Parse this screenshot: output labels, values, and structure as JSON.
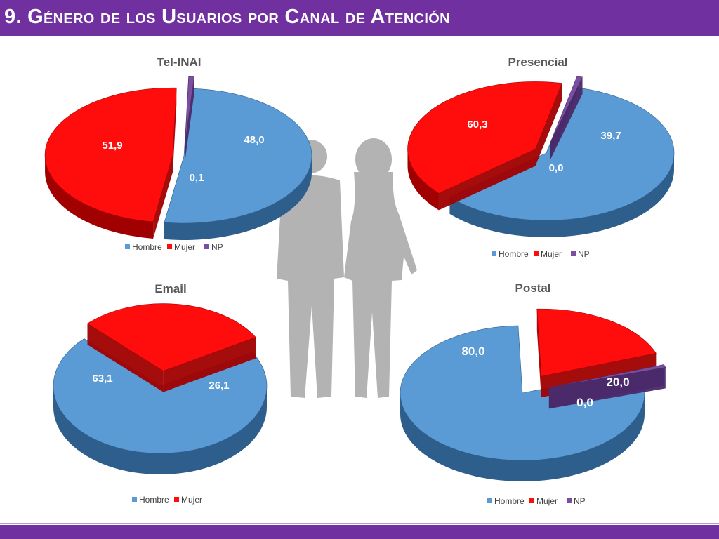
{
  "page": {
    "title": "9. Género de los Usuarios por Canal de Atención"
  },
  "colors": {
    "hombre": "#5b9bd5",
    "hombre_dark": "#2e5f8c",
    "mujer": "#ff0d0d",
    "mujer_dark": "#a00000",
    "np": "#7b4fa0",
    "np_dark": "#4b2a6a",
    "accent": "#7030a0"
  },
  "chart_data": [
    {
      "type": "pie",
      "title": "Tel-INAI",
      "categories": [
        "Hombre",
        "Mujer",
        "NP"
      ],
      "values": [
        51.9,
        48.0,
        0.1
      ],
      "value_labels": [
        "51,9",
        "48,0",
        "0,1"
      ],
      "legend": {
        "entries": [
          "Hombre",
          "Mujer",
          "NP"
        ],
        "position": "bottom"
      }
    },
    {
      "type": "pie",
      "title": "Presencial",
      "categories": [
        "Hombre",
        "Mujer",
        "NP"
      ],
      "values": [
        60.3,
        39.7,
        0.0
      ],
      "value_labels": [
        "60,3",
        "39,7",
        "0,0"
      ],
      "legend": {
        "entries": [
          "Hombre",
          "Mujer",
          "NP"
        ],
        "position": "bottom"
      }
    },
    {
      "type": "pie",
      "title": "Email",
      "categories": [
        "Hombre",
        "Mujer"
      ],
      "values": [
        63.1,
        26.1
      ],
      "value_labels": [
        "63,1",
        "26,1"
      ],
      "legend": {
        "entries": [
          "Hombre",
          "Mujer"
        ],
        "position": "bottom"
      }
    },
    {
      "type": "pie",
      "title": "Postal",
      "categories": [
        "Hombre",
        "Mujer",
        "NP"
      ],
      "values": [
        80.0,
        20.0,
        0.0
      ],
      "value_labels": [
        "80,0",
        "20,0",
        "0,0"
      ],
      "legend": {
        "entries": [
          "Hombre",
          "Mujer",
          "NP"
        ],
        "position": "bottom"
      }
    }
  ]
}
